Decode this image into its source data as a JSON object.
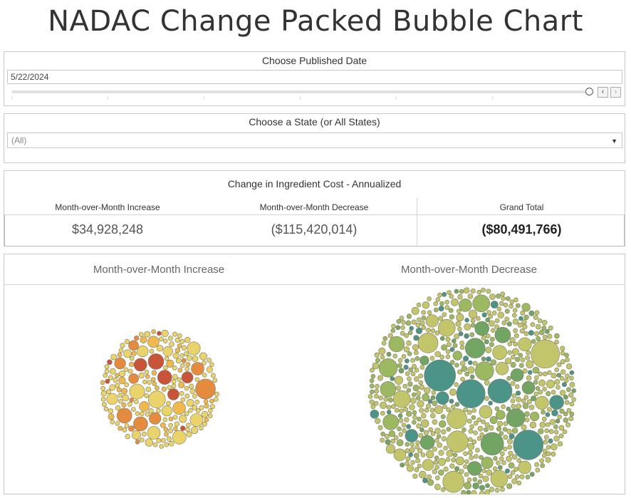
{
  "title": "NADAC Change Packed Bubble Chart",
  "date_filter": {
    "label": "Choose Published Date",
    "value": "5/22/2024",
    "prev_icon": "chevron-left-icon",
    "next_icon": "chevron-right-icon"
  },
  "state_filter": {
    "label": "Choose a State (or All States)",
    "value": "(All)",
    "dropdown_icon": "caret-down-icon"
  },
  "kpi": {
    "title": "Change in Ingredient Cost - Annualized",
    "columns": [
      {
        "header": "Month-over-Month Increase",
        "value": "$34,928,248"
      },
      {
        "header": "Month-over-Month Decrease",
        "value": "($115,420,014)"
      },
      {
        "header": "Grand Total",
        "value": "($80,491,766)"
      }
    ]
  },
  "chart_data": {
    "type": "packed-bubble",
    "panels": [
      {
        "header": "Month-over-Month Increase",
        "total": 34928248,
        "color_scale": [
          "#e9d36a",
          "#f0b94e",
          "#e58b3e",
          "#c8543a"
        ],
        "bubble_count_estimate": 260
      },
      {
        "header": "Month-over-Month Decrease",
        "total": -115420014,
        "color_scale": [
          "#c2c56a",
          "#9cb860",
          "#72a463",
          "#4b9487"
        ],
        "bubble_count_estimate": 700
      }
    ]
  },
  "colors": {
    "border": "#c8c8c8",
    "title_text": "#333333",
    "bubble_stroke": "#7a7a6a"
  }
}
